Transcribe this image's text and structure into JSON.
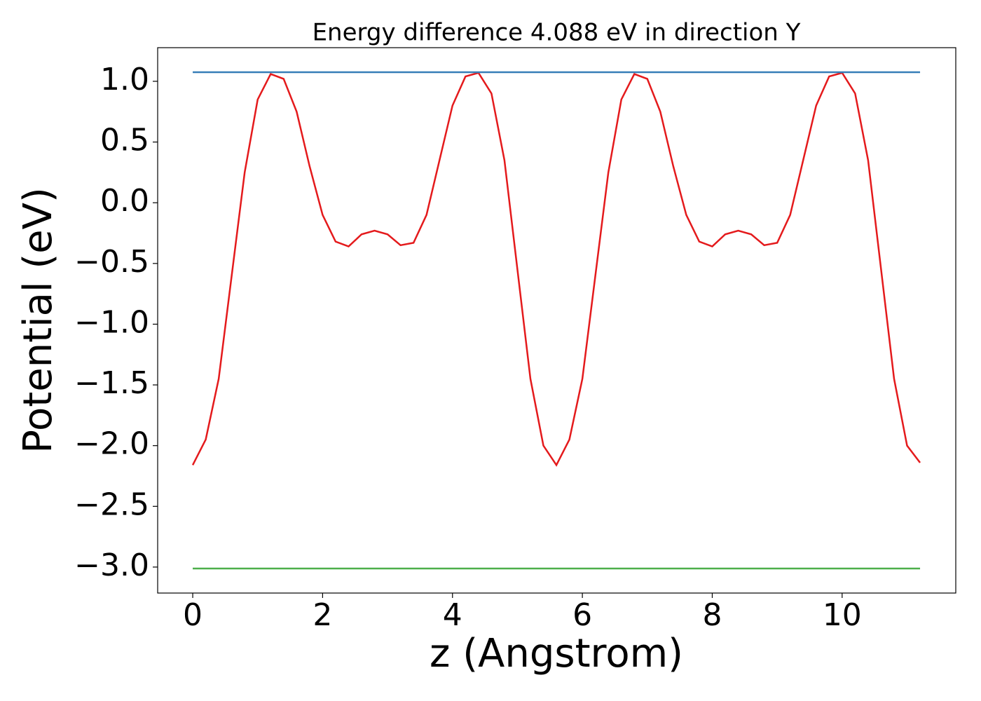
{
  "chart_data": {
    "type": "line",
    "title": "Energy difference 4.088 eV in direction Y",
    "xlabel": "z (Angstrom)",
    "ylabel": "Potential (eV)",
    "xlim": [
      -0.54,
      11.75
    ],
    "ylim": [
      -3.214,
      1.277
    ],
    "xticks": [
      0,
      2,
      4,
      6,
      8,
      10
    ],
    "yticks": [
      {
        "value": 1.0,
        "label": "1.0"
      },
      {
        "value": 0.5,
        "label": "0.5"
      },
      {
        "value": 0.0,
        "label": "0.0"
      },
      {
        "value": -0.5,
        "label": "−0.5"
      },
      {
        "value": -1.0,
        "label": "−1.0"
      },
      {
        "value": -1.5,
        "label": "−1.5"
      },
      {
        "value": -2.0,
        "label": "−2.0"
      },
      {
        "value": -2.5,
        "label": "−2.5"
      },
      {
        "value": -3.0,
        "label": "−3.0"
      }
    ],
    "grid": false,
    "series": [
      {
        "color": "#e41a1c",
        "x": [
          0,
          0.2,
          0.4,
          0.6,
          0.8,
          1,
          1.2,
          1.4,
          1.6,
          1.8,
          2,
          2.2,
          2.4,
          2.6,
          2.8,
          3,
          3.2,
          3.4,
          3.6,
          3.8,
          4,
          4.2,
          4.4,
          4.6,
          4.8,
          5,
          5.2,
          5.4,
          5.6,
          5.8,
          6,
          6.2,
          6.4,
          6.6,
          6.8,
          7,
          7.2,
          7.4,
          7.6,
          7.8,
          8,
          8.2,
          8.4,
          8.6,
          8.8,
          9,
          9.2,
          9.4,
          9.6,
          9.8,
          10,
          10.2,
          10.4,
          10.6,
          10.8,
          11,
          11.2
        ],
        "values": [
          -2.16,
          -1.95,
          -1.45,
          -0.6,
          0.25,
          0.85,
          1.06,
          1.02,
          0.75,
          0.3,
          -0.1,
          -0.32,
          -0.36,
          -0.26,
          -0.23,
          -0.26,
          -0.35,
          -0.33,
          -0.1,
          0.35,
          0.8,
          1.04,
          1.07,
          0.9,
          0.35,
          -0.55,
          -1.45,
          -2.0,
          -2.16,
          -1.95,
          -1.45,
          -0.6,
          0.25,
          0.85,
          1.06,
          1.02,
          0.75,
          0.3,
          -0.1,
          -0.32,
          -0.36,
          -0.26,
          -0.23,
          -0.26,
          -0.35,
          -0.33,
          -0.1,
          0.35,
          0.8,
          1.04,
          1.07,
          0.9,
          0.35,
          -0.55,
          -1.45,
          -2.0,
          -2.14
        ]
      },
      {
        "color": "#377eb8",
        "x": [
          0,
          11.2
        ],
        "values": [
          1.075,
          1.075
        ]
      },
      {
        "color": "#4daf4a",
        "x": [
          0,
          11.2
        ],
        "values": [
          -3.012,
          -3.012
        ]
      }
    ]
  }
}
